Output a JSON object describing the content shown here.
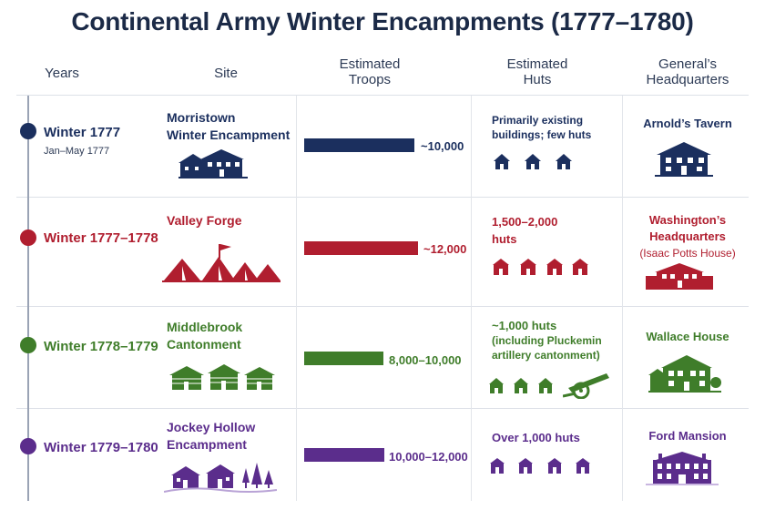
{
  "title": "Continental Army Winter Encampments (1777–1780)",
  "headers": {
    "years": "Years",
    "site": "Site",
    "troops_line1": "Estimated",
    "troops_line2": "Troops",
    "huts_line1": "Estimated",
    "huts_line2": "Huts",
    "hq_line1": "General’s",
    "hq_line2": "Headquarters"
  },
  "colors": {
    "navy": "#1b2f5e",
    "red": "#b01e2f",
    "green": "#3f7d2a",
    "purple": "#5b2d8c"
  },
  "rows": [
    {
      "year": "Winter 1777",
      "year_sub": "Jan–May 1777",
      "site_line1": "Morristown",
      "site_line2": "Winter Encampment",
      "troops": "~10,000",
      "troops_estimate": 10000,
      "huts_line1": "Primarily existing",
      "huts_line2": "buildings; few huts",
      "hq_line1": "Arnold’s Tavern",
      "hq_line2": "",
      "hq_sub": "",
      "site_icon": "colonial-house-icon",
      "hut_icon": "hut-icon",
      "hq_icon": "tavern-icon"
    },
    {
      "year": "Winter 1777–1778",
      "year_sub": "",
      "site_line1": "Valley Forge",
      "site_line2": "",
      "troops": "~12,000",
      "troops_estimate": 12000,
      "huts_line1": "1,500–2,000",
      "huts_line2": "huts",
      "hq_line1": "Washington’s",
      "hq_line2": "Headquarters",
      "hq_sub": "(Isaac Potts House)",
      "site_icon": "tents-flag-icon",
      "hut_icon": "hut-icon",
      "hq_icon": "stone-house-icon"
    },
    {
      "year": "Winter 1778–1779",
      "year_sub": "",
      "site_line1": "Middlebrook",
      "site_line2": "Cantonment",
      "troops": "8,000–10,000",
      "troops_estimate": 9000,
      "huts_line1": "~1,000 huts",
      "huts_line2": "(including Pluckemin",
      "huts_line3": "artillery cantonment)",
      "hq_line1": "Wallace House",
      "hq_line2": "",
      "hq_sub": "",
      "site_icon": "log-cabins-icon",
      "hut_icon": "hut-icon",
      "hq_icon": "farmhouse-icon",
      "extra_icon": "cannon-icon"
    },
    {
      "year": "Winter 1779–1780",
      "year_sub": "",
      "site_line1": "Jockey Hollow",
      "site_line2": "Encampment",
      "troops": "10,000–12,000",
      "troops_estimate": 11000,
      "huts_line1": "Over 1,000 huts",
      "huts_line2": "",
      "hq_line1": "Ford Mansion",
      "hq_line2": "",
      "hq_sub": "",
      "site_icon": "cabins-trees-icon",
      "hut_icon": "hut-icon",
      "hq_icon": "mansion-icon"
    }
  ]
}
